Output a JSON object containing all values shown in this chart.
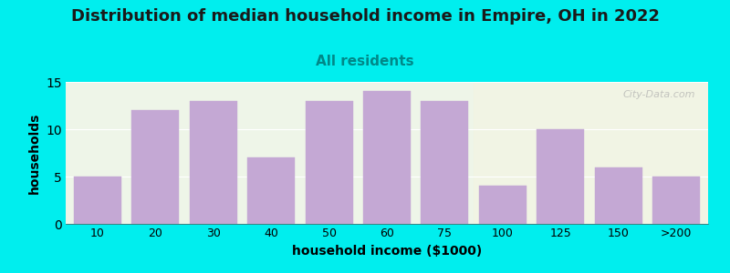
{
  "title": "Distribution of median household income in Empire, OH in 2022",
  "subtitle": "All residents",
  "xlabel": "household income ($1000)",
  "ylabel": "households",
  "background_color": "#00EEEE",
  "plot_bg_color": "#eef5e8",
  "bar_color": "#c4a8d4",
  "bar_edgecolor": "#c4a8d4",
  "categories": [
    "10",
    "20",
    "30",
    "40",
    "50",
    "60",
    "75",
    "100",
    "125",
    "150",
    ">200"
  ],
  "values": [
    5,
    12,
    13,
    7,
    13,
    14,
    13,
    4,
    10,
    6,
    5
  ],
  "ylim": [
    0,
    15
  ],
  "yticks": [
    0,
    5,
    10,
    15
  ],
  "title_fontsize": 13,
  "subtitle_fontsize": 11,
  "subtitle_color": "#008888",
  "axis_label_fontsize": 10,
  "tick_fontsize": 9,
  "watermark_text": "City-Data.com"
}
